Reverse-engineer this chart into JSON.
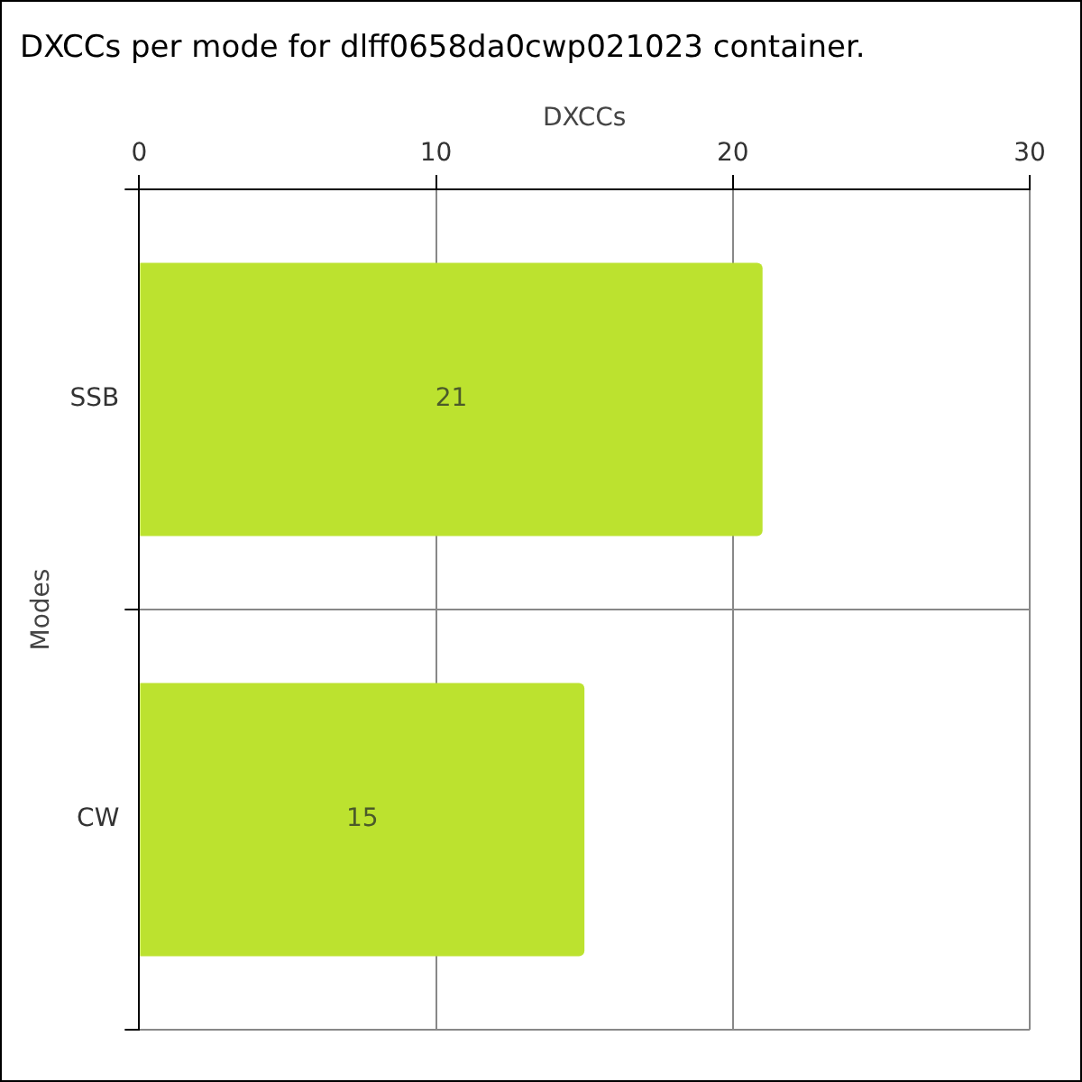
{
  "chart_data": {
    "type": "bar",
    "orientation": "horizontal",
    "title": "DXCCs per mode for dlff0658da0cwp021023 container.",
    "xlabel": "DXCCs",
    "ylabel": "Modes",
    "categories": [
      "SSB",
      "CW"
    ],
    "values": [
      21,
      15
    ],
    "color": "#bce22f",
    "xlim": [
      0,
      30
    ],
    "xticks": [
      0,
      10,
      20,
      30
    ],
    "grid": true,
    "data_labels": true,
    "legend": false
  }
}
